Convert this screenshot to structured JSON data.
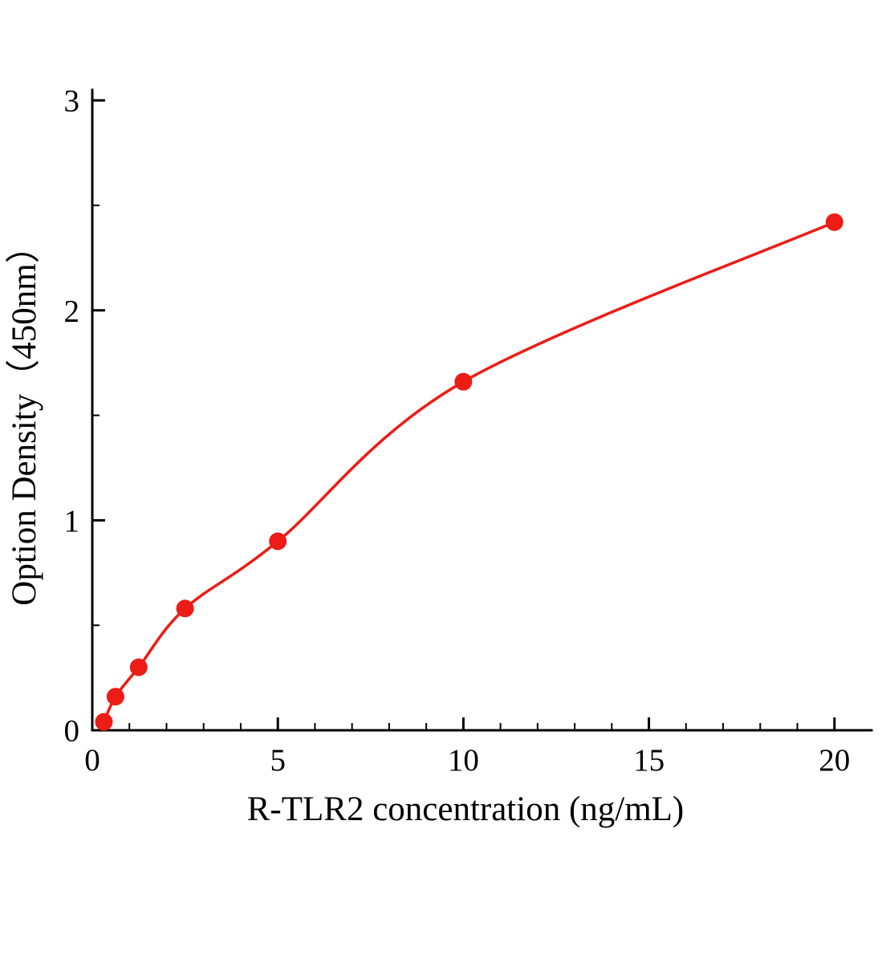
{
  "chart_data": {
    "type": "scatter",
    "title": "",
    "xlabel": "R-TLR2 concentration (ng/mL)",
    "ylabel": "Option Density（450nm）",
    "x": [
      0.313,
      0.625,
      1.25,
      2.5,
      5,
      10,
      20
    ],
    "y": [
      0.04,
      0.16,
      0.3,
      0.58,
      0.9,
      1.66,
      2.42
    ],
    "fit_curve": true,
    "xlim": [
      0,
      21
    ],
    "ylim": [
      0,
      3.05
    ],
    "x_ticks": [
      0,
      5,
      10,
      15,
      20
    ],
    "y_ticks": [
      0,
      1,
      2,
      3
    ],
    "x_minor_step": 1,
    "y_minor_step": 0.5,
    "point_color": "#ed1c16",
    "line_color": "#ed1c16",
    "axis_color": "#000000",
    "grid": false,
    "legend_position": "none"
  }
}
